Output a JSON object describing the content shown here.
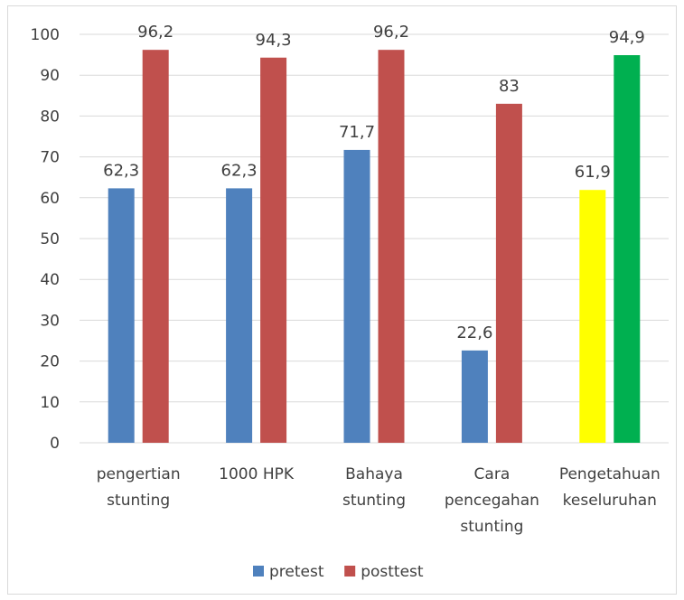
{
  "chart_data": {
    "type": "bar",
    "title": "",
    "xlabel": "",
    "ylabel": "",
    "ylim": [
      0,
      100
    ],
    "yticks": [
      0,
      10,
      20,
      30,
      40,
      50,
      60,
      70,
      80,
      90,
      100
    ],
    "grid": true,
    "legend_position": "bottom",
    "categories": [
      [
        "pengertian",
        "stunting"
      ],
      [
        "1000 HPK"
      ],
      [
        "Bahaya",
        "stunting"
      ],
      [
        "Cara",
        "pencegahan",
        "stunting"
      ],
      [
        "Pengetahuan",
        "keseluruhan"
      ]
    ],
    "series": [
      {
        "name": "pretest",
        "color": "#4f81bd",
        "values": [
          62.3,
          62.3,
          71.7,
          22.6,
          61.9
        ],
        "labels": [
          "62,3",
          "62,3",
          "71,7",
          "22,6",
          "61,9"
        ]
      },
      {
        "name": "posttest",
        "color": "#c0504d",
        "values": [
          96.2,
          94.3,
          96.2,
          83,
          94.9
        ],
        "labels": [
          "96,2",
          "94,3",
          "96,2",
          "83",
          "94,9"
        ]
      }
    ],
    "point_colors": {
      "4": {
        "pretest": "#ffff00",
        "posttest": "#00b050"
      }
    }
  }
}
